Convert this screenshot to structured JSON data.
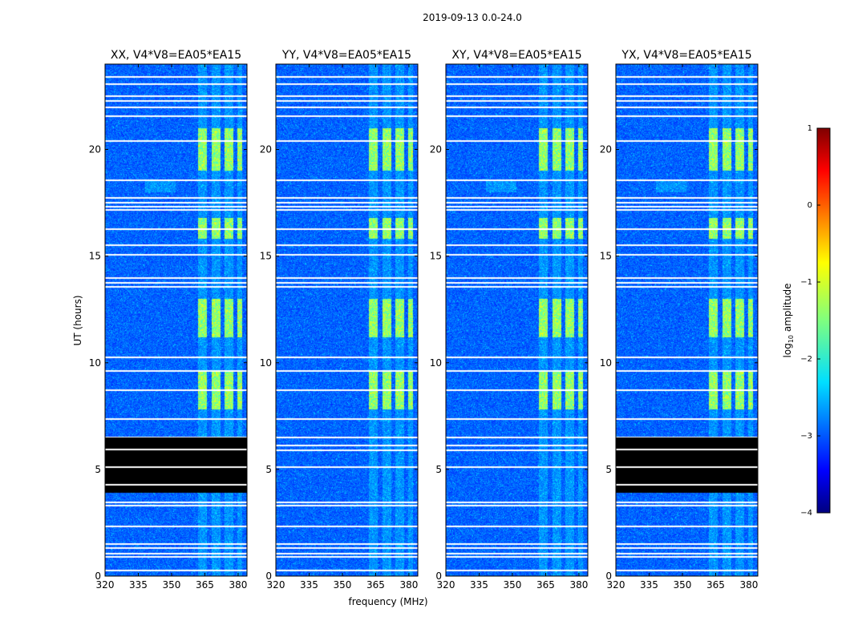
{
  "figure_title": "2019-09-13 0.0-24.0",
  "chart_data": {
    "type": "heatmap",
    "title": "2019-09-13 0.0-24.0",
    "xlabel": "frequency (MHz)",
    "ylabel": "UT (hours)",
    "xlim": [
      320,
      384
    ],
    "ylim": [
      0,
      24
    ],
    "x_ticks": [
      320,
      335,
      350,
      365,
      380
    ],
    "y_ticks": [
      0,
      5,
      10,
      15,
      20
    ],
    "panels": [
      {
        "title": "XX, V4*V8=EA05*EA15",
        "pol": "XX"
      },
      {
        "title": "YY, V4*V8=EA05*EA15",
        "pol": "YY"
      },
      {
        "title": "XY, V4*V8=EA05*EA15",
        "pol": "XY"
      },
      {
        "title": "YX, V4*V8=EA05*EA15",
        "pol": "YX"
      }
    ],
    "colorbar": {
      "label": "log10 amplitude",
      "range": [
        -4,
        1
      ],
      "ticks": [
        1,
        0,
        -1,
        -2,
        -3,
        -4
      ],
      "colormap": "jet"
    },
    "flagged_ut_hours": [
      0.3,
      0.95,
      1.1,
      1.35,
      1.55,
      2.35,
      3.35,
      3.5,
      5.15,
      5.95,
      6.15,
      6.55,
      7.4,
      8.75,
      9.65,
      10.3,
      13.6,
      13.8,
      14.0,
      15.1,
      15.55,
      16.3,
      17.2,
      17.35,
      17.55,
      17.75,
      18.6,
      20.45,
      21.6,
      22.0,
      22.3,
      22.55,
      23.1,
      23.45
    ],
    "blanked_ut_ranges_xx_yx": [
      [
        3.9,
        6.5
      ]
    ],
    "rfi_bands_mhz": [
      [
        362,
        366
      ],
      [
        368,
        372
      ],
      [
        374,
        378
      ],
      [
        379.5,
        382
      ]
    ],
    "rfi_time_blocks_ut": [
      [
        7.8,
        9.6
      ],
      [
        11.2,
        13.0
      ],
      [
        15.8,
        16.8
      ],
      [
        19.0,
        21.0
      ]
    ]
  }
}
